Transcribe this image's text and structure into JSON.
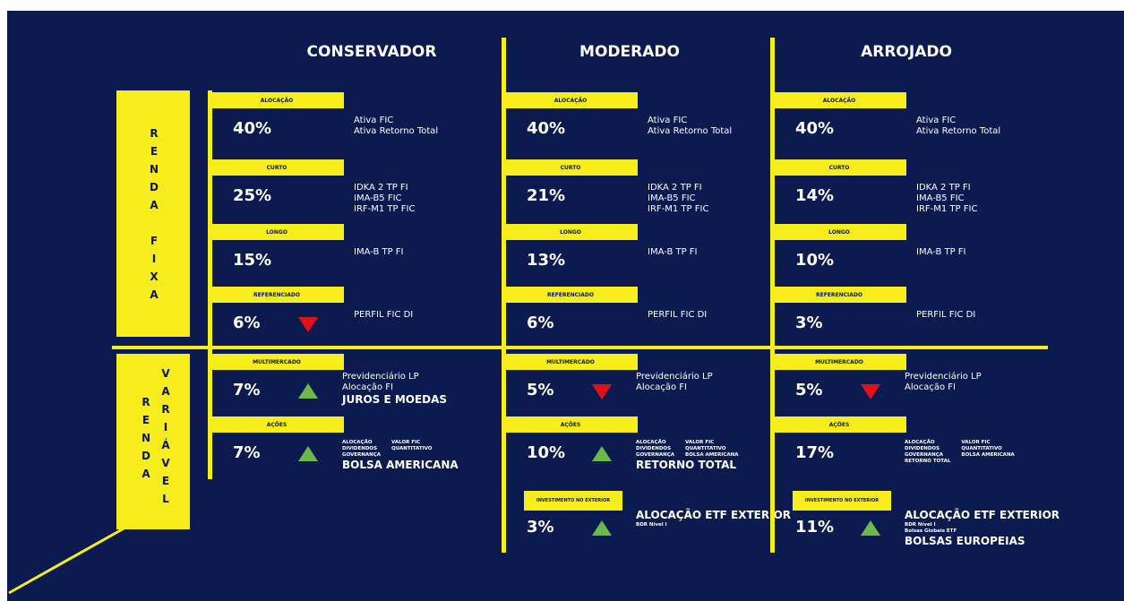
{
  "row_labels": {
    "fixed": "RENDA FIXA",
    "variable_left": "RENDA",
    "variable_right": "VARIÁVEL"
  },
  "profiles": [
    {
      "name": "CONSERVADOR",
      "sections": [
        {
          "label": "ALOCAÇÃO",
          "value": "40%",
          "funds": [
            "Ativa FIC",
            "Ativa Retorno Total"
          ]
        },
        {
          "label": "CURTO",
          "value": "25%",
          "funds": [
            "IDKA 2 TP FI",
            "IMA-B5 FIC",
            "IRF-M1 TP FIC"
          ]
        },
        {
          "label": "LONGO",
          "value": "15%",
          "funds": [
            "IMA-B TP FI"
          ]
        },
        {
          "label": "REFERENCIADO",
          "value": "6%",
          "trend": "down",
          "funds": [
            "PERFIL FIC DI"
          ]
        },
        {
          "label": "MULTIMERCADO",
          "value": "7%",
          "trend": "up",
          "funds": [
            "Previdenciário LP",
            "Alocação FI"
          ],
          "highlight": "JUROS E MOEDAS"
        },
        {
          "label": "AÇÕES",
          "value": "7%",
          "trend": "up",
          "small": [
            [
              "ALOCAÇÃO",
              "DIVIDENDOS",
              "GOVERNANÇA"
            ],
            [
              "VALOR FIC",
              "QUANTITATIVO"
            ]
          ],
          "highlight": "BOLSA AMERICANA"
        }
      ]
    },
    {
      "name": "MODERADO",
      "sections": [
        {
          "label": "ALOCAÇÃO",
          "value": "40%",
          "funds": [
            "Ativa FIC",
            "Ativa Retorno Total"
          ]
        },
        {
          "label": "CURTO",
          "value": "21%",
          "funds": [
            "IDKA 2 TP FI",
            "IMA-B5 FIC",
            "IRF-M1 TP FIC"
          ]
        },
        {
          "label": "LONGO",
          "value": "13%",
          "funds": [
            "IMA-B TP FI"
          ]
        },
        {
          "label": "REFERENCIADO",
          "value": "6%",
          "funds": [
            "PERFIL FIC DI"
          ]
        },
        {
          "label": "MULTIMERCADO",
          "value": "5%",
          "trend": "down",
          "funds": [
            "Previdenciário LP",
            "Alocação FI"
          ]
        },
        {
          "label": "AÇÕES",
          "value": "10%",
          "trend": "up",
          "small": [
            [
              "ALOCAÇÃO",
              "DIVIDENDOS",
              "GOVERNANÇA"
            ],
            [
              "VALOR FIC",
              "QUANTITATIVO",
              "BOLSA AMERICANA"
            ]
          ],
          "highlight": "RETORNO TOTAL"
        },
        {
          "label": "INVESTIMENTO NO EXTERIOR",
          "value": "3%",
          "trend": "up",
          "highlight": "ALOCAÇÃO ETF EXTERIOR",
          "after": [
            "BDR Nível I"
          ]
        }
      ]
    },
    {
      "name": "ARROJADO",
      "sections": [
        {
          "label": "ALOCAÇÃO",
          "value": "40%",
          "funds": [
            "Ativa FIC",
            "Ativa Retorno Total"
          ]
        },
        {
          "label": "CURTO",
          "value": "14%",
          "funds": [
            "IDKA 2 TP FI",
            "IMA-B5 FIC",
            "IRF-M1 TP FIC"
          ]
        },
        {
          "label": "LONGO",
          "value": "10%",
          "funds": [
            "IMA-B TP FI"
          ]
        },
        {
          "label": "REFERENCIADO",
          "value": "3%",
          "funds": [
            "PERFIL FIC DI"
          ]
        },
        {
          "label": "MULTIMERCADO",
          "value": "5%",
          "trend": "down",
          "funds": [
            "Previdenciário LP",
            "Alocação FI"
          ]
        },
        {
          "label": "AÇÕES",
          "value": "17%",
          "small": [
            [
              "ALOCAÇÃO",
              "DIVIDENDOS",
              "GOVERNANÇA",
              "RETORNO TOTAL"
            ],
            [
              "VALOR FIC",
              "QUANTITATIVO",
              "BOLSA AMERICANA"
            ]
          ]
        },
        {
          "label": "INVESTIMENTO NO EXTERIOR",
          "value": "11%",
          "trend": "up",
          "highlight": "ALOCAÇÃO ETF EXTERIOR",
          "after": [
            "BDR Nível I",
            "Bolsas Globais ETF"
          ],
          "highlight2": "BOLSAS EUROPEIAS"
        }
      ]
    }
  ]
}
